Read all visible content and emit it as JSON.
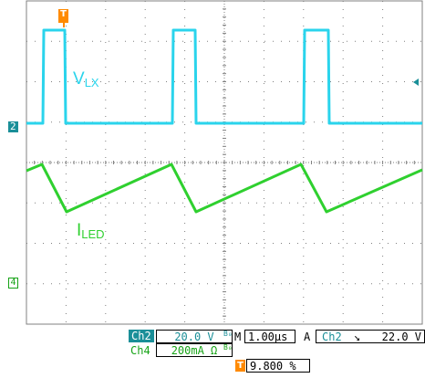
{
  "colors": {
    "ch2": "#2ad4ec",
    "ch4": "#2fd02f",
    "grid": "#808080",
    "trigger": "#ff8a00",
    "ch2_badge": "#1a8f98",
    "ch4_text": "#17a317"
  },
  "traces": {
    "vlx_label_main": "V",
    "vlx_label_sub": "LX",
    "iled_label_main": "I",
    "iled_label_sub": "LED"
  },
  "markers": {
    "ch2_marker": "2",
    "ch4_marker": "4",
    "trigger_marker": "T",
    "trigger_icon": "trigger-T-icon"
  },
  "status": {
    "ch2_name": "Ch2",
    "ch2_scale": "20.0 V",
    "ch2_bw": "B₀",
    "ch4_name": "Ch4",
    "ch4_scale": "200mA Ω",
    "ch4_bw": "B₀",
    "timebase_prefix": "M",
    "timebase": "1.00µs",
    "acq_mode": "A",
    "trig_source": "Ch2",
    "trig_slope": "↘",
    "trig_level": "22.0 V",
    "trig_position": "9.800 %"
  }
}
